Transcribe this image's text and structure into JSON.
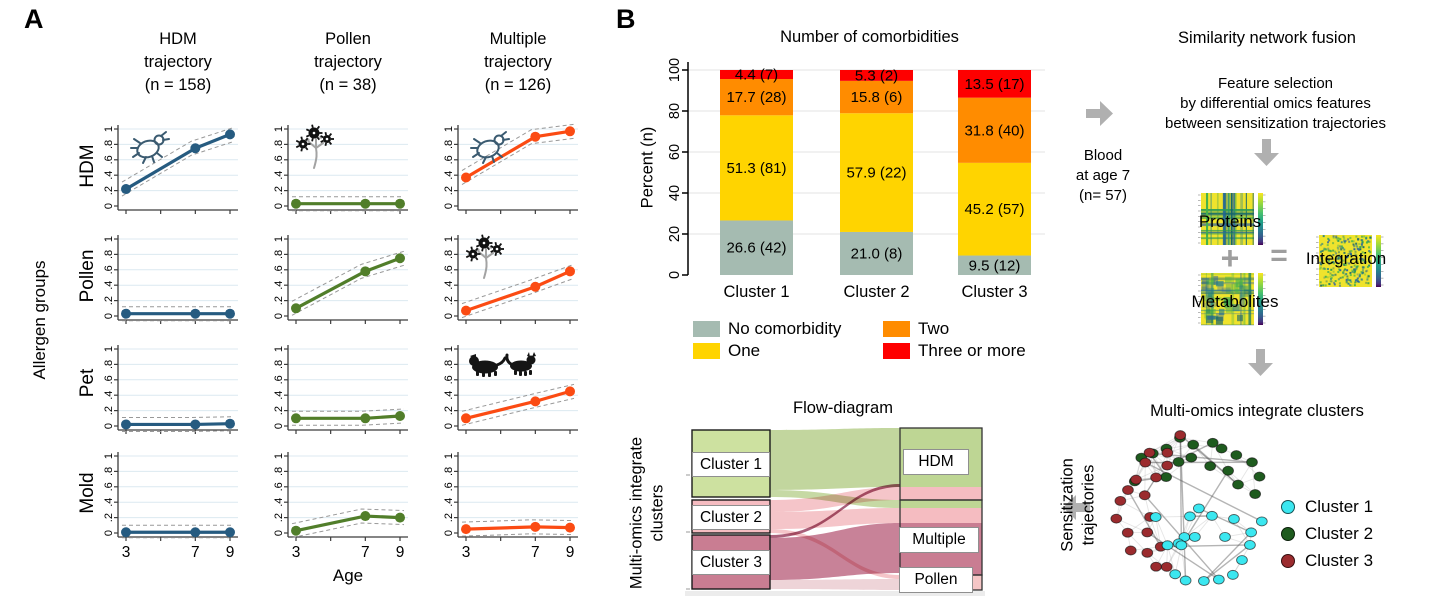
{
  "panels": {
    "a": "A",
    "b": "B"
  },
  "panel_b_text": {
    "snf_title": "Similarity network fusion",
    "feature_selection": "Feature selection\nby differential omics features\nbetween sensitization trajectories",
    "blood": "Blood\nat age 7\n(n= 57)",
    "proteins": "Proteins",
    "metabolites": "Metabolites",
    "integration": "Integration",
    "plus": "+",
    "equals": "="
  },
  "chart_data": [
    {
      "type": "line",
      "description": "Panel A: 4x3 small-multiple sensitization probability trajectories with dashed CI bands",
      "x": [
        3,
        7,
        9
      ],
      "x_axis_ticks": [
        3,
        5,
        7,
        9
      ],
      "x_tick_labels": [
        "3",
        "7",
        "9"
      ],
      "xlabel": "Age",
      "ylim": [
        0,
        1
      ],
      "y_ticks": [
        0,
        0.2,
        0.4,
        0.6,
        0.8,
        1
      ],
      "y_tick_labels": [
        "0",
        ".2",
        ".4",
        ".6",
        ".8",
        "1"
      ],
      "outer_ylabel": "Allergen groups",
      "rows": [
        "HDM",
        "Pollen",
        "Pet",
        "Mold"
      ],
      "columns": [
        {
          "title": "HDM\ntrajectory\n(n = 158)",
          "color": "#265b80"
        },
        {
          "title": "Pollen\ntrajectory\n(n = 38)",
          "color": "#517e2a"
        },
        {
          "title": "Multiple\ntrajectory\n(n = 126)",
          "color": "#fb4b13"
        }
      ],
      "values": [
        [
          [
            0.22,
            0.75,
            0.93
          ],
          [
            0.03,
            0.03,
            0.03
          ],
          [
            0.37,
            0.9,
            0.97
          ]
        ],
        [
          [
            0.03,
            0.03,
            0.03
          ],
          [
            0.1,
            0.58,
            0.75
          ],
          [
            0.07,
            0.38,
            0.58
          ]
        ],
        [
          [
            0.02,
            0.02,
            0.03
          ],
          [
            0.1,
            0.1,
            0.13
          ],
          [
            0.1,
            0.32,
            0.45
          ]
        ],
        [
          [
            0.01,
            0.01,
            0.01
          ],
          [
            0.03,
            0.22,
            0.2
          ],
          [
            0.05,
            0.08,
            0.07
          ]
        ]
      ],
      "ci_style": "dashed gray band",
      "icons": [
        {
          "row": 0,
          "col": 0,
          "icon": "mite-icon"
        },
        {
          "row": 0,
          "col": 1,
          "icon": "pollen-icon"
        },
        {
          "row": 0,
          "col": 2,
          "icon": "mite-icon"
        },
        {
          "row": 1,
          "col": 2,
          "icon": "pollen-icon"
        },
        {
          "row": 2,
          "col": 2,
          "icon": "pets-icon"
        }
      ],
      "grid_color": "#dce9f1",
      "ci_color": "#999999"
    },
    {
      "type": "bar",
      "stacked": true,
      "title": "Number of comorbidities",
      "ylabel": "Percent (n)",
      "categories": [
        "Cluster 1",
        "Cluster 2",
        "Cluster 3"
      ],
      "ylim": [
        0,
        100
      ],
      "y_ticks": [
        0,
        20,
        40,
        60,
        80,
        100
      ],
      "series": [
        {
          "name": "No comorbidity",
          "color": "#a5bbb1",
          "values": [
            26.6,
            21.0,
            9.5
          ],
          "labels": [
            "26.6 (42)",
            "21.0 (8)",
            "9.5 (12)"
          ]
        },
        {
          "name": "One",
          "color": "#ffd400",
          "values": [
            51.3,
            57.9,
            45.2
          ],
          "labels": [
            "51.3 (81)",
            "57.9 (22)",
            "45.2 (57)"
          ]
        },
        {
          "name": "Two",
          "color": "#ff8c00",
          "values": [
            17.7,
            15.8,
            31.8
          ],
          "labels": [
            "17.7 (28)",
            "15.8 (6)",
            "31.8 (40)"
          ]
        },
        {
          "name": "Three or more",
          "color": "#fe0000",
          "values": [
            4.4,
            5.3,
            13.5
          ],
          "labels": [
            "4.4 (7)",
            "5.3 (2)",
            "13.5 (17)"
          ]
        }
      ]
    },
    {
      "type": "sankey",
      "title": "Flow-diagram",
      "left_axis_label": "Multi-omics integrate\nclusters",
      "right_axis_label": "Sensitization\ntrajectories",
      "left_nodes": [
        {
          "label": "Cluster 1",
          "color": "#cde1a0"
        },
        {
          "label": "Cluster 2",
          "color": "#f5bcc1"
        },
        {
          "label": "Cluster 3",
          "color": "#c97d92"
        }
      ],
      "right_nodes": [
        {
          "label": "HDM",
          "color": "#bed694"
        },
        {
          "label": "Multiple",
          "color": "#c97d92"
        },
        {
          "label": "Pollen",
          "color": "#f5c6c6"
        }
      ],
      "flows": [
        {
          "from": "Cluster 1",
          "to": "HDM",
          "color": "#b3cc86"
        },
        {
          "from": "Cluster 1",
          "to": "Multiple",
          "color": "#b3cc86"
        },
        {
          "from": "Cluster 2",
          "to": "HDM",
          "color": "#f3b6bb"
        },
        {
          "from": "Cluster 2",
          "to": "Multiple",
          "color": "#f3b6bb"
        },
        {
          "from": "Cluster 2",
          "to": "Pollen",
          "color": "#f3b6bb"
        },
        {
          "from": "Cluster 3",
          "to": "HDM",
          "color": "#a04f6b"
        },
        {
          "from": "Cluster 3",
          "to": "Multiple",
          "color": "#bf6c86"
        },
        {
          "from": "Cluster 3",
          "to": "Pollen",
          "color": "#e3b7be"
        }
      ]
    },
    {
      "type": "network",
      "title": "Multi-omics integrate clusters",
      "clusters": [
        {
          "name": "Cluster 1",
          "color": "#3be7f0",
          "count": 20
        },
        {
          "name": "Cluster 2",
          "color": "#1e5b1e",
          "count": 18
        },
        {
          "name": "Cluster 3",
          "color": "#9b2b2e",
          "count": 19
        }
      ]
    }
  ]
}
